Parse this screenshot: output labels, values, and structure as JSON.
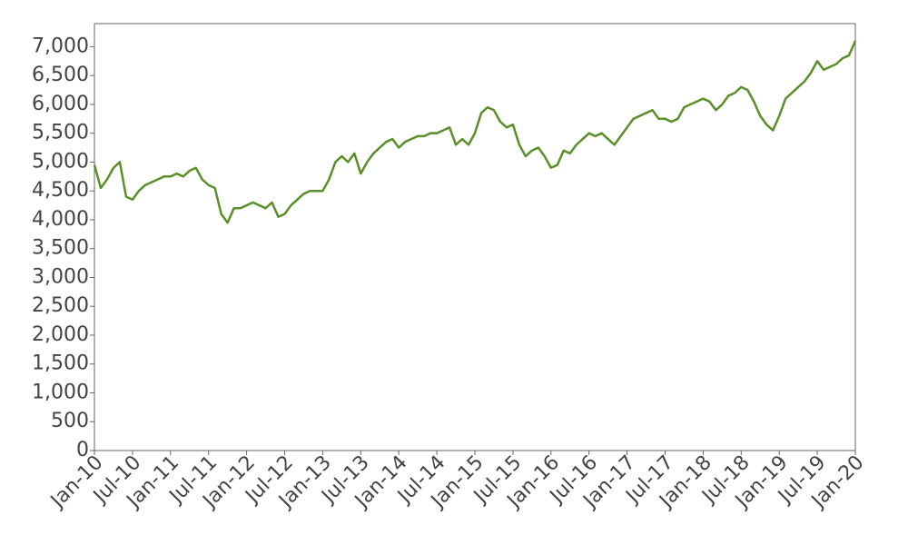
{
  "chart_data": {
    "type": "line",
    "x": [
      "2010-01",
      "2010-02",
      "2010-03",
      "2010-04",
      "2010-05",
      "2010-06",
      "2010-07",
      "2010-08",
      "2010-09",
      "2010-10",
      "2010-11",
      "2010-12",
      "2011-01",
      "2011-02",
      "2011-03",
      "2011-04",
      "2011-05",
      "2011-06",
      "2011-07",
      "2011-08",
      "2011-09",
      "2011-10",
      "2011-11",
      "2011-12",
      "2012-01",
      "2012-02",
      "2012-03",
      "2012-04",
      "2012-05",
      "2012-06",
      "2012-07",
      "2012-08",
      "2012-09",
      "2012-10",
      "2012-11",
      "2012-12",
      "2013-01",
      "2013-02",
      "2013-03",
      "2013-04",
      "2013-05",
      "2013-06",
      "2013-07",
      "2013-08",
      "2013-09",
      "2013-10",
      "2013-11",
      "2013-12",
      "2014-01",
      "2014-02",
      "2014-03",
      "2014-04",
      "2014-05",
      "2014-06",
      "2014-07",
      "2014-08",
      "2014-09",
      "2014-10",
      "2014-11",
      "2014-12",
      "2015-01",
      "2015-02",
      "2015-03",
      "2015-04",
      "2015-05",
      "2015-06",
      "2015-07",
      "2015-08",
      "2015-09",
      "2015-10",
      "2015-11",
      "2015-12",
      "2016-01",
      "2016-02",
      "2016-03",
      "2016-04",
      "2016-05",
      "2016-06",
      "2016-07",
      "2016-08",
      "2016-09",
      "2016-10",
      "2016-11",
      "2016-12",
      "2017-01",
      "2017-02",
      "2017-03",
      "2017-04",
      "2017-05",
      "2017-06",
      "2017-07",
      "2017-08",
      "2017-09",
      "2017-10",
      "2017-11",
      "2017-12",
      "2018-01",
      "2018-02",
      "2018-03",
      "2018-04",
      "2018-05",
      "2018-06",
      "2018-07",
      "2018-08",
      "2018-09",
      "2018-10",
      "2018-11",
      "2018-12",
      "2019-01",
      "2019-02",
      "2019-03",
      "2019-04",
      "2019-05",
      "2019-06",
      "2019-07",
      "2019-08",
      "2019-09",
      "2019-10",
      "2019-11",
      "2019-12",
      "2020-01"
    ],
    "series": [
      {
        "color": "#5a8f29",
        "values": [
          4950,
          4550,
          4700,
          4900,
          5000,
          4400,
          4350,
          4500,
          4600,
          4650,
          4700,
          4750,
          4750,
          4800,
          4750,
          4850,
          4900,
          4700,
          4600,
          4550,
          4100,
          3950,
          4200,
          4200,
          4250,
          4300,
          4250,
          4200,
          4300,
          4050,
          4100,
          4250,
          4350,
          4450,
          4500,
          4500,
          4500,
          4700,
          5000,
          5100,
          5000,
          5150,
          4800,
          5000,
          5150,
          5250,
          5350,
          5400,
          5250,
          5350,
          5400,
          5450,
          5450,
          5500,
          5500,
          5550,
          5600,
          5300,
          5400,
          5300,
          5500,
          5850,
          5950,
          5900,
          5700,
          5600,
          5650,
          5300,
          5100,
          5200,
          5250,
          5100,
          4900,
          4950,
          5200,
          5150,
          5300,
          5400,
          5500,
          5450,
          5500,
          5400,
          5300,
          5450,
          5600,
          5750,
          5800,
          5850,
          5900,
          5750,
          5750,
          5700,
          5750,
          5950,
          6000,
          6050,
          6100,
          6050,
          5900,
          6000,
          6150,
          6200,
          6300,
          6250,
          6050,
          5800,
          5650,
          5550,
          5800,
          6100,
          6200,
          6300,
          6400,
          6550,
          6750,
          6600,
          6650,
          6700,
          6800,
          6850,
          7100
        ]
      }
    ],
    "xlim": [
      "2010-01",
      "2020-01"
    ],
    "xticks": [
      {
        "value": "2010-01",
        "label": "Jan-10"
      },
      {
        "value": "2010-07",
        "label": "Jul-10"
      },
      {
        "value": "2011-01",
        "label": "Jan-11"
      },
      {
        "value": "2011-07",
        "label": "Jul-11"
      },
      {
        "value": "2012-01",
        "label": "Jan-12"
      },
      {
        "value": "2012-07",
        "label": "Jul-12"
      },
      {
        "value": "2013-01",
        "label": "Jan-13"
      },
      {
        "value": "2013-07",
        "label": "Jul-13"
      },
      {
        "value": "2014-01",
        "label": "Jan-14"
      },
      {
        "value": "2014-07",
        "label": "Jul-14"
      },
      {
        "value": "2015-01",
        "label": "Jan-15"
      },
      {
        "value": "2015-07",
        "label": "Jul-15"
      },
      {
        "value": "2016-01",
        "label": "Jan-16"
      },
      {
        "value": "2016-07",
        "label": "Jul-16"
      },
      {
        "value": "2017-01",
        "label": "Jan-17"
      },
      {
        "value": "2017-07",
        "label": "Jul-17"
      },
      {
        "value": "2018-01",
        "label": "Jan-18"
      },
      {
        "value": "2018-07",
        "label": "Jul-18"
      },
      {
        "value": "2019-01",
        "label": "Jan-19"
      },
      {
        "value": "2019-07",
        "label": "Jul-19"
      },
      {
        "value": "2020-01",
        "label": "Jan-20"
      }
    ],
    "ylim": [
      0,
      7400
    ],
    "yticks": [
      0,
      500,
      {
        "value": 1000,
        "label": "1,000"
      },
      {
        "value": 1500,
        "label": "1,500"
      },
      {
        "value": 2000,
        "label": "2,000"
      },
      {
        "value": 2500,
        "label": "2,500"
      },
      {
        "value": 3000,
        "label": "3,000"
      },
      {
        "value": 3500,
        "label": "3,500"
      },
      {
        "value": 4000,
        "label": "4,000"
      },
      {
        "value": 4500,
        "label": "4,500"
      },
      {
        "value": 5000,
        "label": "5,000"
      },
      {
        "value": 5500,
        "label": "5,500"
      },
      {
        "value": 6000,
        "label": "6,000"
      },
      {
        "value": 6500,
        "label": "6,500"
      },
      {
        "value": 7000,
        "label": "7,000"
      }
    ]
  }
}
